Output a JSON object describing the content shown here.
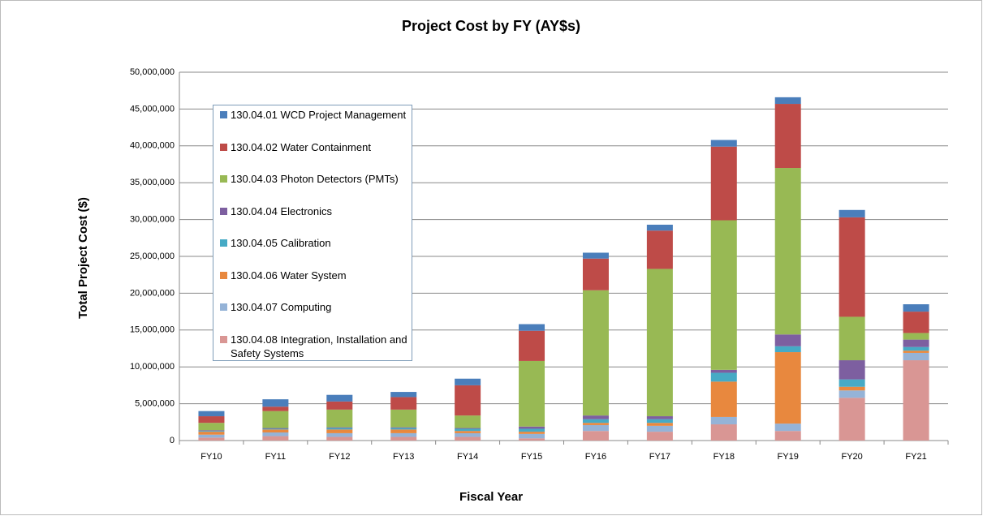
{
  "chart_data": {
    "type": "stacked_bar",
    "title": "Project Cost by FY (AY$s)",
    "x_label": "Fiscal Year",
    "y_label": "Total Project Cost ($)",
    "categories": [
      "FY10",
      "FY11",
      "FY12",
      "FY13",
      "FY14",
      "FY15",
      "FY16",
      "FY17",
      "FY18",
      "FY19",
      "FY20",
      "FY21"
    ],
    "series": [
      {
        "name": "130.04.01 WCD Project Management",
        "color": "#4a7ebb",
        "values": [
          700000,
          1000000,
          900000,
          700000,
          900000,
          900000,
          800000,
          800000,
          900000,
          900000,
          1000000,
          1000000
        ]
      },
      {
        "name": "130.04.02 Water Containment",
        "color": "#be4b48",
        "values": [
          900000,
          600000,
          1100000,
          1700000,
          4100000,
          4100000,
          4300000,
          5200000,
          10000000,
          8700000,
          13500000,
          2900000
        ]
      },
      {
        "name": "130.04.03 Photon Detectors (PMTs)",
        "color": "#98b954",
        "values": [
          1000000,
          2300000,
          2400000,
          2400000,
          1700000,
          8900000,
          17000000,
          20000000,
          20300000,
          22600000,
          5900000,
          900000
        ]
      },
      {
        "name": "130.04.04 Electronics",
        "color": "#7d5fa0",
        "values": [
          100000,
          100000,
          100000,
          100000,
          100000,
          300000,
          500000,
          400000,
          400000,
          1600000,
          2600000,
          1000000
        ]
      },
      {
        "name": "130.04.05 Calibration",
        "color": "#46aac5",
        "values": [
          100000,
          100000,
          200000,
          200000,
          300000,
          400000,
          500000,
          500000,
          1200000,
          800000,
          1000000,
          500000
        ]
      },
      {
        "name": "130.04.06 Water System",
        "color": "#e8883e",
        "values": [
          400000,
          400000,
          500000,
          500000,
          300000,
          300000,
          300000,
          400000,
          4800000,
          9700000,
          500000,
          300000
        ]
      },
      {
        "name": "130.04.07 Computing",
        "color": "#95b3d7",
        "values": [
          400000,
          500000,
          500000,
          500000,
          500000,
          600000,
          800000,
          800000,
          1000000,
          1000000,
          1000000,
          1000000
        ]
      },
      {
        "name": "130.04.08 Integration, Installation and Safety Systems",
        "color": "#d99694",
        "values": [
          400000,
          600000,
          500000,
          500000,
          500000,
          300000,
          1300000,
          1200000,
          2200000,
          1300000,
          5800000,
          10900000
        ]
      }
    ],
    "ylim": [
      0,
      50000000
    ],
    "yticks": [
      0,
      {
        "value": 5000000,
        "label": "5,000,000"
      },
      {
        "value": 10000000,
        "label": "10,000,000"
      },
      {
        "value": 15000000,
        "label": "15,000,000"
      },
      {
        "value": 20000000,
        "label": "20,000,000"
      },
      {
        "value": 25000000,
        "label": "25,000,000"
      },
      {
        "value": 30000000,
        "label": "30,000,000"
      },
      {
        "value": 35000000,
        "label": "35,000,000"
      },
      {
        "value": 40000000,
        "label": "40,000,000"
      },
      {
        "value": 45000000,
        "label": "45,000,000"
      },
      {
        "value": 50000000,
        "label": "50,000,000"
      }
    ],
    "grid": true,
    "legend": "left"
  }
}
